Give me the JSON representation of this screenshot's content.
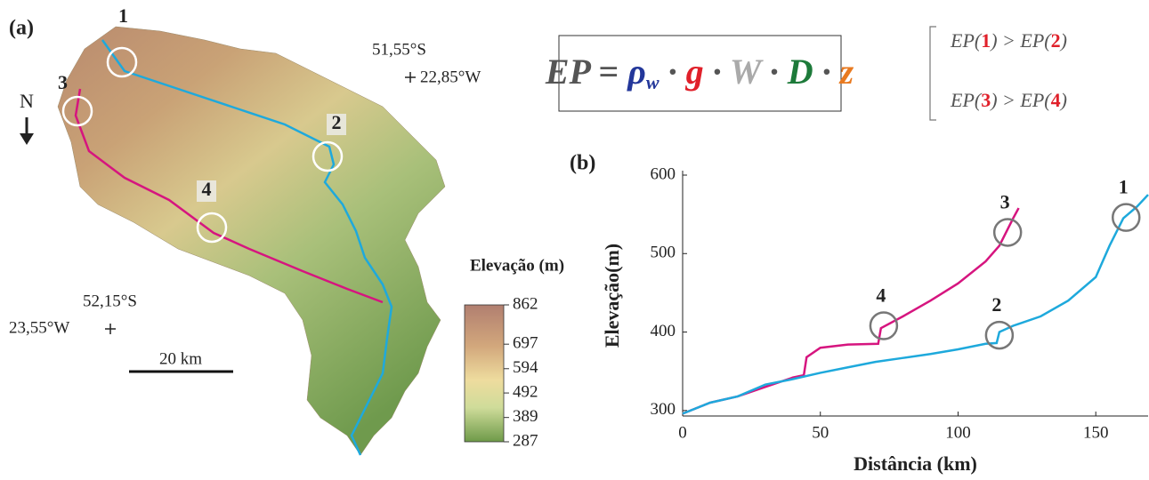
{
  "map": {
    "panel": "(a)",
    "points": [
      "1",
      "2",
      "3",
      "4"
    ],
    "north": "N",
    "coord_ne": [
      "51,55°S",
      "22,85°W"
    ],
    "coord_sw": [
      "52,15°S",
      "23,55°W"
    ],
    "scale": "20 km",
    "colorbar": {
      "title": "Elevação (m)",
      "range": [
        287,
        862
      ],
      "ticks": [
        862,
        697,
        594,
        492,
        389,
        287
      ]
    }
  },
  "formula": [
    "EP",
    "=",
    "ρ",
    "w",
    "·",
    "g",
    "·",
    "W",
    "·",
    "D",
    "·",
    "z"
  ],
  "inequalities": [
    [
      "EP(",
      "1",
      ") > EP(",
      "2",
      ")"
    ],
    [
      "EP(",
      "3",
      ") > EP(",
      "4",
      ")"
    ]
  ],
  "chart_data": {
    "type": "line",
    "panel": "(b)",
    "xlabel": "Distância (km)",
    "ylabel": "Elevação(m)",
    "xlim": [
      0,
      169
    ],
    "ylim": [
      293,
      600
    ],
    "xticks": [
      0,
      50,
      100,
      150
    ],
    "yticks": [
      300,
      400,
      500,
      600
    ],
    "series": [
      {
        "color": "#d6157f",
        "x": [
          0,
          10,
          20,
          30,
          40,
          44,
          45,
          50,
          60,
          71,
          72,
          80,
          90,
          100,
          110,
          115,
          120,
          122
        ],
        "values": [
          296,
          310,
          318,
          330,
          342,
          345,
          368,
          380,
          384,
          385,
          405,
          420,
          440,
          462,
          490,
          510,
          545,
          558
        ]
      },
      {
        "color": "#1ea9dc",
        "x": [
          0,
          10,
          20,
          30,
          40,
          50,
          60,
          70,
          80,
          90,
          100,
          110,
          114,
          115,
          120,
          130,
          140,
          150,
          155,
          160,
          165,
          169
        ],
        "values": [
          296,
          310,
          318,
          333,
          340,
          348,
          355,
          362,
          367,
          372,
          378,
          385,
          386,
          400,
          408,
          420,
          440,
          470,
          510,
          545,
          560,
          575
        ]
      }
    ],
    "annotations": [
      {
        "label": "1",
        "x": 161,
        "y": 546
      },
      {
        "label": "2",
        "x": 115,
        "y": 396
      },
      {
        "label": "3",
        "x": 118,
        "y": 527
      },
      {
        "label": "4",
        "x": 73,
        "y": 408
      }
    ]
  }
}
